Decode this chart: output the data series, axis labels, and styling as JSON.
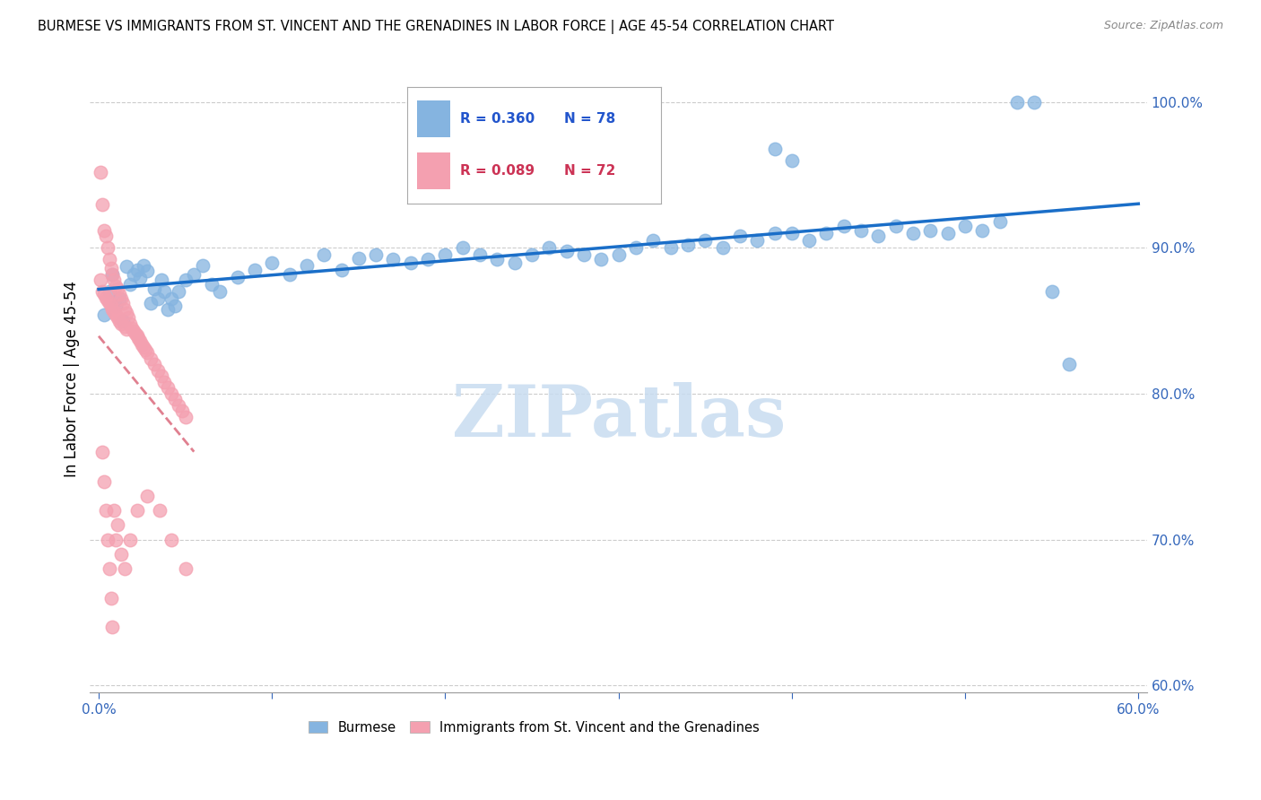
{
  "title": "BURMESE VS IMMIGRANTS FROM ST. VINCENT AND THE GRENADINES IN LABOR FORCE | AGE 45-54 CORRELATION CHART",
  "source": "Source: ZipAtlas.com",
  "ylabel": "In Labor Force | Age 45-54",
  "xlim": [
    -0.005,
    0.605
  ],
  "ylim": [
    0.595,
    1.025
  ],
  "xticks": [
    0.0,
    0.1,
    0.2,
    0.3,
    0.4,
    0.5,
    0.6
  ],
  "yticks": [
    0.6,
    0.7,
    0.8,
    0.9,
    1.0
  ],
  "blue_R": 0.36,
  "blue_N": 78,
  "pink_R": 0.089,
  "pink_N": 72,
  "blue_color": "#85B4E0",
  "pink_color": "#F4A0B0",
  "trendline_blue_color": "#1A6EC8",
  "trendline_pink_color": "#E08090",
  "watermark": "ZIPatlas",
  "blue_scatter_x": [
    0.003,
    0.006,
    0.008,
    0.01,
    0.012,
    0.014,
    0.016,
    0.018,
    0.02,
    0.022,
    0.024,
    0.026,
    0.028,
    0.03,
    0.032,
    0.034,
    0.036,
    0.038,
    0.04,
    0.042,
    0.044,
    0.046,
    0.05,
    0.055,
    0.06,
    0.065,
    0.07,
    0.08,
    0.09,
    0.1,
    0.11,
    0.12,
    0.13,
    0.14,
    0.15,
    0.16,
    0.17,
    0.18,
    0.19,
    0.2,
    0.21,
    0.22,
    0.23,
    0.24,
    0.25,
    0.26,
    0.27,
    0.28,
    0.29,
    0.3,
    0.31,
    0.32,
    0.33,
    0.34,
    0.35,
    0.36,
    0.37,
    0.38,
    0.39,
    0.4,
    0.41,
    0.42,
    0.43,
    0.44,
    0.45,
    0.46,
    0.47,
    0.48,
    0.49,
    0.5,
    0.51,
    0.52,
    0.39,
    0.4,
    0.53,
    0.54,
    0.55,
    0.56
  ],
  "blue_scatter_y": [
    0.854,
    0.87,
    0.882,
    0.86,
    0.865,
    0.85,
    0.887,
    0.875,
    0.882,
    0.885,
    0.879,
    0.888,
    0.884,
    0.862,
    0.872,
    0.865,
    0.878,
    0.87,
    0.858,
    0.865,
    0.86,
    0.87,
    0.878,
    0.882,
    0.888,
    0.875,
    0.87,
    0.88,
    0.885,
    0.89,
    0.882,
    0.888,
    0.895,
    0.885,
    0.893,
    0.895,
    0.892,
    0.89,
    0.892,
    0.895,
    0.9,
    0.895,
    0.892,
    0.89,
    0.895,
    0.9,
    0.898,
    0.895,
    0.892,
    0.895,
    0.9,
    0.905,
    0.9,
    0.902,
    0.905,
    0.9,
    0.908,
    0.905,
    0.91,
    0.91,
    0.905,
    0.91,
    0.915,
    0.912,
    0.908,
    0.915,
    0.91,
    0.912,
    0.91,
    0.915,
    0.912,
    0.918,
    0.968,
    0.96,
    1.0,
    1.0,
    0.87,
    0.82
  ],
  "pink_scatter_x": [
    0.001,
    0.001,
    0.002,
    0.002,
    0.003,
    0.003,
    0.004,
    0.004,
    0.005,
    0.005,
    0.006,
    0.006,
    0.007,
    0.007,
    0.008,
    0.008,
    0.009,
    0.009,
    0.01,
    0.01,
    0.011,
    0.011,
    0.012,
    0.012,
    0.013,
    0.013,
    0.014,
    0.015,
    0.015,
    0.016,
    0.016,
    0.017,
    0.018,
    0.019,
    0.02,
    0.021,
    0.022,
    0.023,
    0.024,
    0.025,
    0.026,
    0.027,
    0.028,
    0.03,
    0.032,
    0.034,
    0.036,
    0.038,
    0.04,
    0.042,
    0.044,
    0.046,
    0.048,
    0.05,
    0.002,
    0.003,
    0.004,
    0.005,
    0.006,
    0.007,
    0.008,
    0.009,
    0.01,
    0.011,
    0.013,
    0.015,
    0.018,
    0.022,
    0.028,
    0.035,
    0.042,
    0.05
  ],
  "pink_scatter_y": [
    0.952,
    0.878,
    0.93,
    0.87,
    0.912,
    0.868,
    0.908,
    0.866,
    0.9,
    0.864,
    0.892,
    0.862,
    0.886,
    0.86,
    0.882,
    0.858,
    0.878,
    0.856,
    0.874,
    0.854,
    0.872,
    0.852,
    0.868,
    0.85,
    0.865,
    0.848,
    0.862,
    0.858,
    0.846,
    0.855,
    0.844,
    0.852,
    0.848,
    0.845,
    0.843,
    0.841,
    0.84,
    0.838,
    0.836,
    0.834,
    0.832,
    0.83,
    0.828,
    0.824,
    0.82,
    0.816,
    0.812,
    0.808,
    0.804,
    0.8,
    0.796,
    0.792,
    0.788,
    0.784,
    0.76,
    0.74,
    0.72,
    0.7,
    0.68,
    0.66,
    0.64,
    0.72,
    0.7,
    0.71,
    0.69,
    0.68,
    0.7,
    0.72,
    0.73,
    0.72,
    0.7,
    0.68
  ]
}
